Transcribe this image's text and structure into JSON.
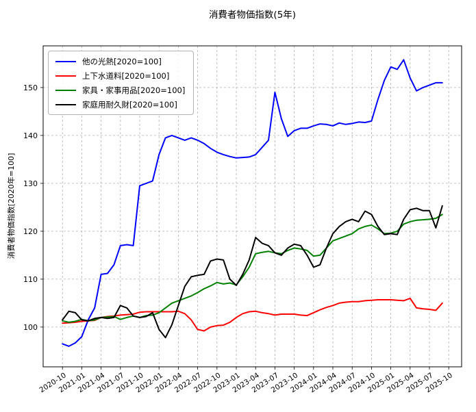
{
  "chart_data": {
    "type": "line",
    "title": "消費者物価指数(5年)",
    "xlabel": "",
    "ylabel": "消費者物価指数[2020年=100]",
    "grid": true,
    "legend_position": "upper-left",
    "xlim": [
      -3,
      62
    ],
    "ylim": [
      91.7,
      158.7
    ],
    "yticks": [
      100,
      110,
      120,
      130,
      140,
      150
    ],
    "xtick_positions": [
      0,
      3,
      6,
      9,
      12,
      15,
      18,
      21,
      24,
      27,
      30,
      33,
      36,
      39,
      42,
      45,
      48,
      51,
      54,
      57,
      60
    ],
    "xtick_labels": [
      "2020-10",
      "2021-01",
      "2021-04",
      "2021-07",
      "2021-10",
      "2022-01",
      "2022-04",
      "2022-07",
      "2022-10",
      "2023-01",
      "2023-04",
      "2023-07",
      "2023-10",
      "2024-01",
      "2024-04",
      "2024-07",
      "2024-10",
      "2025-01",
      "2025-04",
      "2025-07",
      "2025-10"
    ],
    "categories": [
      "2020-10",
      "2020-11",
      "2020-12",
      "2021-01",
      "2021-02",
      "2021-03",
      "2021-04",
      "2021-05",
      "2021-06",
      "2021-07",
      "2021-08",
      "2021-09",
      "2021-10",
      "2021-11",
      "2021-12",
      "2022-01",
      "2022-02",
      "2022-03",
      "2022-04",
      "2022-05",
      "2022-06",
      "2022-07",
      "2022-08",
      "2022-09",
      "2022-10",
      "2022-11",
      "2022-12",
      "2023-01",
      "2023-02",
      "2023-03",
      "2023-04",
      "2023-05",
      "2023-06",
      "2023-07",
      "2023-08",
      "2023-09",
      "2023-10",
      "2023-11",
      "2023-12",
      "2024-01",
      "2024-02",
      "2024-03",
      "2024-04",
      "2024-05",
      "2024-06",
      "2024-07",
      "2024-08",
      "2024-09",
      "2024-10",
      "2024-11",
      "2024-12",
      "2025-01",
      "2025-02",
      "2025-03",
      "2025-04",
      "2025-05",
      "2025-06",
      "2025-07",
      "2025-08",
      "2025-09"
    ],
    "series": [
      {
        "name": "他の光熱[2020=100]",
        "color": "#0000ff",
        "values": [
          96.5,
          96.0,
          96.7,
          98.0,
          101.5,
          104.0,
          111.0,
          111.2,
          113.0,
          117.0,
          117.2,
          117.0,
          129.5,
          130.0,
          130.5,
          136.0,
          139.5,
          140.0,
          139.5,
          139.0,
          139.5,
          139.0,
          138.3,
          137.3,
          136.5,
          136.0,
          135.6,
          135.3,
          135.4,
          135.5,
          136.0,
          137.5,
          139.0,
          149.0,
          143.5,
          139.8,
          141.0,
          141.5,
          141.5,
          142.0,
          142.4,
          142.3,
          142.0,
          142.6,
          142.3,
          142.5,
          142.8,
          142.7,
          143.0,
          147.5,
          151.5,
          154.3,
          153.8,
          155.8,
          152.0,
          149.3,
          150.0,
          150.5,
          151.0,
          151.0
        ]
      },
      {
        "name": "上下水道料[2020=100]",
        "color": "#ff0000",
        "values": [
          100.8,
          100.9,
          101.0,
          101.2,
          101.3,
          101.4,
          102.0,
          102.2,
          102.3,
          102.5,
          102.6,
          102.7,
          103.1,
          103.2,
          103.2,
          103.2,
          103.2,
          103.2,
          103.3,
          102.8,
          101.5,
          99.5,
          99.2,
          100.0,
          100.3,
          100.4,
          101.0,
          102.0,
          102.8,
          103.2,
          103.3,
          103.0,
          102.8,
          102.5,
          102.7,
          102.7,
          102.7,
          102.5,
          102.4,
          103.0,
          103.6,
          104.1,
          104.5,
          105.0,
          105.2,
          105.3,
          105.3,
          105.5,
          105.6,
          105.7,
          105.7,
          105.7,
          105.6,
          105.5,
          106.0,
          104.0,
          103.8,
          103.7,
          103.5,
          105.0
        ]
      },
      {
        "name": "家具・家事用品[2020=100]",
        "color": "#008000",
        "values": [
          101.3,
          101.0,
          101.2,
          101.6,
          101.3,
          101.5,
          102.0,
          102.1,
          102.2,
          101.6,
          102.0,
          102.3,
          102.0,
          102.4,
          102.5,
          103.0,
          104.0,
          105.0,
          105.5,
          106.0,
          106.5,
          107.2,
          108.0,
          108.6,
          109.3,
          109.0,
          109.2,
          108.8,
          110.5,
          112.5,
          115.3,
          115.6,
          115.8,
          115.5,
          115.3,
          116.0,
          116.5,
          116.3,
          116.0,
          114.8,
          115.0,
          116.5,
          118.0,
          118.5,
          119.0,
          119.5,
          120.5,
          121.0,
          121.3,
          120.5,
          119.5,
          119.6,
          120.0,
          121.5,
          122.0,
          122.3,
          122.4,
          122.5,
          122.7,
          123.5
        ]
      },
      {
        "name": "家庭用耐久財[2020=100]",
        "color": "#000000",
        "values": [
          101.5,
          103.3,
          103.0,
          101.5,
          101.3,
          101.8,
          102.0,
          101.8,
          102.0,
          104.5,
          104.0,
          102.3,
          102.0,
          102.2,
          103.0,
          99.5,
          97.8,
          100.5,
          104.5,
          108.5,
          110.5,
          110.8,
          111.0,
          113.8,
          114.2,
          114.0,
          110.0,
          108.7,
          111.0,
          114.0,
          118.7,
          117.5,
          117.0,
          115.5,
          115.0,
          116.5,
          117.3,
          117.0,
          115.0,
          112.5,
          113.0,
          116.5,
          119.5,
          121.0,
          122.0,
          122.5,
          122.0,
          124.2,
          123.5,
          121.0,
          119.3,
          119.5,
          119.3,
          122.5,
          124.5,
          124.8,
          124.3,
          124.3,
          120.7,
          125.3
        ]
      }
    ]
  }
}
